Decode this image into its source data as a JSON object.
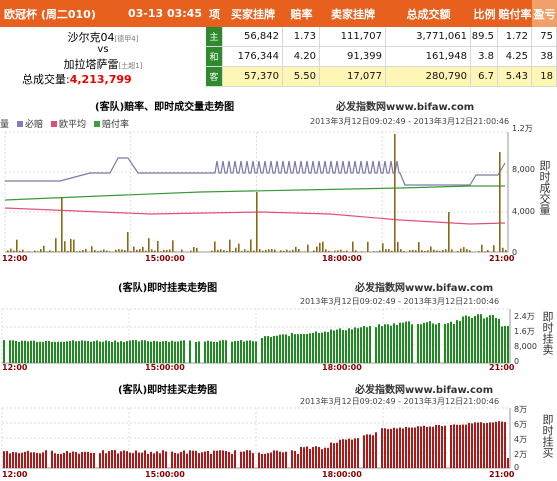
{
  "header": {
    "league": "欧冠杯 (周二010)",
    "datetime": "03-13 03:45",
    "col_item": "项",
    "col_buy": "买家挂牌",
    "col_rate": "赔率",
    "col_sell": "卖家挂牌",
    "col_volume": "总成交额",
    "col_ratio": "比例",
    "col_payrate": "赔付率",
    "col_profit": "盈亏",
    "home_team": "沙尔克04",
    "home_rank": "[德甲4]",
    "vs": "vs",
    "away_team": "加拉塔萨雷",
    "away_rank": "[土超1]",
    "total_label": "总成交量:",
    "total_value": "4,213,799",
    "rows": [
      {
        "tag": "主",
        "buy": "56,842",
        "rate": "1.73",
        "sell": "111,707",
        "volume": "3,771,061",
        "ratio": "89.5",
        "payrate": "1.72",
        "profit": "75"
      },
      {
        "tag": "和",
        "buy": "176,344",
        "rate": "4.20",
        "sell": "91,399",
        "volume": "161,948",
        "ratio": "3.8",
        "payrate": "4.25",
        "profit": "38"
      },
      {
        "tag": "客",
        "buy": "57,370",
        "rate": "5.50",
        "sell": "17,077",
        "volume": "280,790",
        "ratio": "6.7",
        "payrate": "5.43",
        "profit": "18"
      }
    ],
    "colors": {
      "header_bg": "#e8601e",
      "tag_bg": "#2f8a2f",
      "highlight": "#fdf6b5"
    }
  },
  "charts": [
    {
      "title": "(客队)赔率、即时成交量走势图",
      "site": "必发指数网www.bifaw.com",
      "date_range": "2013年3月12日09:02:49 - 2013年3月12日21:00:46",
      "vertical_label": "即时成交量",
      "legend": [
        "量",
        "必赔",
        "欧平均",
        "赔付率"
      ],
      "y_ticks": [
        "1.2万",
        "8,000",
        "4,000",
        "0"
      ],
      "x_ticks": [
        "12:00",
        "15:00:00",
        "18:00:00",
        "21:00"
      ]
    },
    {
      "title": "(客队)即时挂卖走势图",
      "site": "必发指数网www.bifaw.com",
      "date_range": "2013年3月12日09:02:49 - 2013年3月12日21:00:46",
      "vertical_label": "即时挂卖",
      "y_ticks": [
        "2.4万",
        "1.6万",
        "8,000",
        "0"
      ],
      "x_ticks": [
        "12:00",
        "15:00:00",
        "18:00:00",
        "21:00"
      ]
    },
    {
      "title": "(客队)即时挂买走势图",
      "site": "必发指数网www.bifaw.com",
      "date_range": "2013年3月12日09:02:49 - 2013年3月12日21:00:46",
      "vertical_label": "即时挂买",
      "y_ticks": [
        "8万",
        "6万",
        "4万",
        "2万",
        "0"
      ],
      "x_ticks": [
        "12:00",
        "15:00:00",
        "18:00:00",
        "21:00"
      ]
    }
  ]
}
